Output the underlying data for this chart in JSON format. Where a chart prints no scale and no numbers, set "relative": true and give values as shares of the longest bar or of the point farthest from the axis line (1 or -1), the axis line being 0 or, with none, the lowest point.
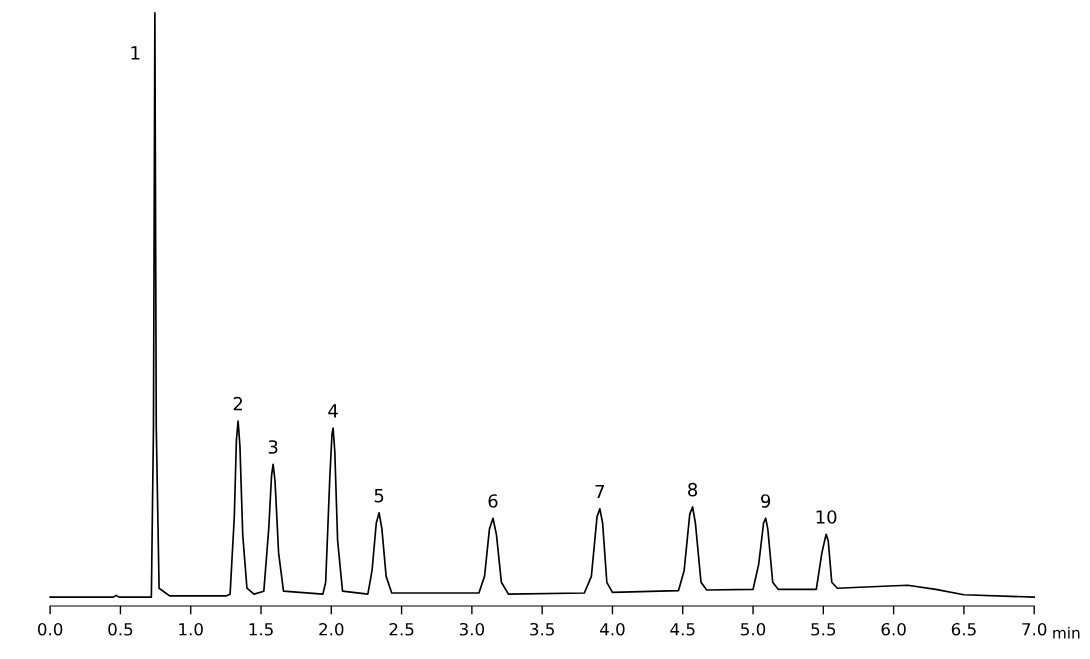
{
  "chart_data": {
    "type": "line",
    "relative": true,
    "xlabel": "min",
    "color": "#000000",
    "grid": false,
    "legend": false,
    "marker": "none",
    "line_style": "solid",
    "xlim": [
      0,
      7
    ],
    "xticks": [
      {
        "value": 0,
        "label": "0.0"
      },
      {
        "value": 0.5,
        "label": "0.5"
      },
      {
        "value": 1,
        "label": "1.0"
      },
      {
        "value": 1.5,
        "label": "1.5"
      },
      {
        "value": 2,
        "label": "2.0"
      },
      {
        "value": 2.5,
        "label": "2.5"
      },
      {
        "value": 3,
        "label": "3.0"
      },
      {
        "value": 3.5,
        "label": "3.5"
      },
      {
        "value": 4,
        "label": "4.0"
      },
      {
        "value": 4.5,
        "label": "4.5"
      },
      {
        "value": 5,
        "label": "5.0"
      },
      {
        "value": 5.5,
        "label": "5.5"
      },
      {
        "value": 6,
        "label": "6.0"
      },
      {
        "value": 6.5,
        "label": "6.5"
      },
      {
        "value": 7,
        "label": "7.0"
      }
    ],
    "x": [
      0.0,
      0.45,
      0.47,
      0.49,
      0.72,
      0.735,
      0.745,
      0.755,
      0.775,
      0.85,
      1.25,
      1.28,
      1.31,
      1.325,
      1.337,
      1.35,
      1.37,
      1.4,
      1.45,
      1.52,
      1.555,
      1.575,
      1.586,
      1.6,
      1.625,
      1.66,
      1.94,
      1.96,
      1.99,
      2.005,
      2.013,
      2.025,
      2.045,
      2.08,
      2.26,
      2.29,
      2.32,
      2.34,
      2.36,
      2.39,
      2.43,
      3.05,
      3.09,
      3.125,
      3.15,
      3.175,
      3.21,
      3.26,
      3.8,
      3.85,
      3.89,
      3.91,
      3.93,
      3.96,
      4.0,
      4.47,
      4.51,
      4.55,
      4.57,
      4.59,
      4.63,
      4.67,
      5.0,
      5.04,
      5.075,
      5.09,
      5.105,
      5.14,
      5.18,
      5.45,
      5.49,
      5.52,
      5.535,
      5.56,
      5.6,
      5.8,
      6.1,
      6.3,
      6.5,
      7.0
    ],
    "values": [
      0.015,
      0.015,
      0.018,
      0.015,
      0.015,
      0.3,
      1.0,
      0.3,
      0.03,
      0.017,
      0.017,
      0.02,
      0.15,
      0.28,
      0.312,
      0.27,
      0.12,
      0.03,
      0.02,
      0.025,
      0.13,
      0.22,
      0.239,
      0.21,
      0.09,
      0.025,
      0.02,
      0.04,
      0.22,
      0.29,
      0.3,
      0.26,
      0.11,
      0.025,
      0.02,
      0.06,
      0.14,
      0.157,
      0.13,
      0.05,
      0.022,
      0.022,
      0.05,
      0.13,
      0.148,
      0.12,
      0.04,
      0.02,
      0.022,
      0.05,
      0.15,
      0.164,
      0.14,
      0.04,
      0.023,
      0.026,
      0.06,
      0.155,
      0.167,
      0.14,
      0.04,
      0.027,
      0.028,
      0.07,
      0.14,
      0.148,
      0.13,
      0.04,
      0.028,
      0.028,
      0.09,
      0.121,
      0.11,
      0.04,
      0.03,
      0.032,
      0.035,
      0.028,
      0.019,
      0.015
    ],
    "annotations": [
      {
        "text": "1",
        "x": 0.745,
        "y": 0.93
      },
      {
        "text": "2",
        "x": 1.337,
        "y": 0.312
      },
      {
        "text": "3",
        "x": 1.586,
        "y": 0.239
      },
      {
        "text": "4",
        "x": 2.013,
        "y": 0.3
      },
      {
        "text": "5",
        "x": 2.34,
        "y": 0.157
      },
      {
        "text": "6",
        "x": 3.15,
        "y": 0.148
      },
      {
        "text": "7",
        "x": 3.91,
        "y": 0.164
      },
      {
        "text": "8",
        "x": 4.57,
        "y": 0.167
      },
      {
        "text": "9",
        "x": 5.09,
        "y": 0.148
      },
      {
        "text": "10",
        "x": 5.52,
        "y": 0.121
      }
    ]
  }
}
